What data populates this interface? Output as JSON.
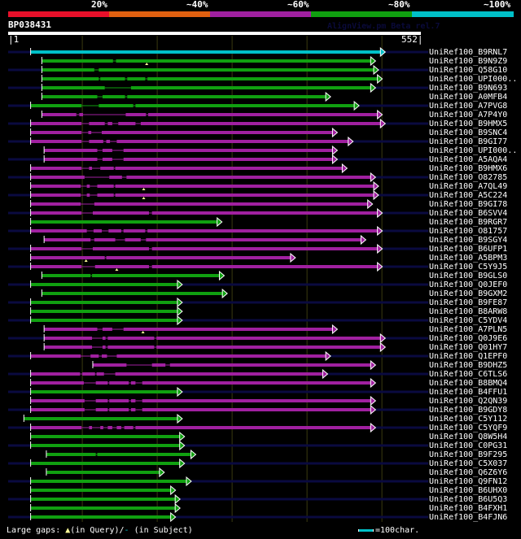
{
  "header": {
    "color_key": [
      {
        "label": "20%",
        "color": "#e8102a"
      },
      {
        "label": "~40%",
        "color": "#e06010"
      },
      {
        "label": "~60%",
        "color": "#a020a0"
      },
      {
        "label": "~80%",
        "color": "#10a010"
      },
      {
        "label": "~100%",
        "color": "#00c0c8"
      }
    ],
    "query_name": "BP038431",
    "watermark": "AlignView.pm Beta rel.7",
    "query_start": "|1",
    "query_end": "552|"
  },
  "footer": {
    "gaps_label": "Large gaps:",
    "gap_query_marker": "▲",
    "gap_query_text": "(in Query)/",
    "gap_subject_marker": "-",
    "gap_subject_text": " (in Subject)",
    "scale_text": "=100char."
  },
  "chart_data": {
    "type": "alignment-overview",
    "title": "BP038431",
    "query_length": 552,
    "xlim": [
      1,
      552
    ],
    "grid_interval": 100,
    "identity_legend": [
      "20%",
      "~40%",
      "~60%",
      "~80%",
      "~100%"
    ],
    "hits": [
      {
        "name": "UniRef100_B9RNL7",
        "start": 31,
        "end": 498,
        "identity": "~100%",
        "subject_overhang_left": true,
        "subject_overhang_right": true
      },
      {
        "name": "UniRef100_B9N9Z9",
        "start": 46,
        "end": 485,
        "identity": "~80%",
        "gaps": [
          [
            141,
            145
          ]
        ],
        "query_gaps": [
          186
        ]
      },
      {
        "name": "UniRef100_Q58G10",
        "start": 46,
        "end": 489,
        "identity": "~80%",
        "gaps": [
          [
            116,
            122
          ]
        ],
        "subject_overhang_left": true,
        "subject_overhang_right": true
      },
      {
        "name": "UniRef100_UPI000..",
        "start": 46,
        "end": 494,
        "identity": "~80%",
        "gaps": [
          [
            122,
            124
          ],
          [
            157,
            160
          ],
          [
            184,
            187
          ]
        ]
      },
      {
        "name": "UniRef100_B9N693",
        "start": 46,
        "end": 485,
        "identity": "~80%",
        "gaps": [
          [
            130,
            165
          ]
        ],
        "subject_overhang_left": true,
        "subject_overhang_right": true
      },
      {
        "name": "UniRef100_A0MFB4",
        "start": 46,
        "end": 425,
        "identity": "~80%",
        "gaps": [
          [
            120,
            127
          ],
          [
            157,
            160
          ]
        ]
      },
      {
        "name": "UniRef100_A7PVG8",
        "start": 31,
        "end": 463,
        "identity": "~80%",
        "gaps": [
          [
            99,
            122
          ],
          [
            168,
            171
          ]
        ],
        "subject_overhang_left": true,
        "subject_overhang_right": true
      },
      {
        "name": "UniRef100_A7P4Y0",
        "start": 46,
        "end": 494,
        "identity": "~60%",
        "gaps": [
          [
            92,
            96
          ],
          [
            101,
            158
          ],
          [
            185,
            188
          ]
        ]
      },
      {
        "name": "UniRef100_B9HMX5",
        "start": 31,
        "end": 498,
        "identity": "~60%",
        "gaps": [
          [
            99,
            109
          ],
          [
            130,
            134
          ],
          [
            140,
            148
          ],
          [
            171,
            178
          ]
        ],
        "subject_overhang_left": true,
        "subject_overhang_right": true
      },
      {
        "name": "UniRef100_B9SNC4",
        "start": 31,
        "end": 434,
        "identity": "~60%",
        "gaps": [
          [
            99,
            108
          ],
          [
            112,
            126
          ]
        ]
      },
      {
        "name": "UniRef100_B9GI77",
        "start": 31,
        "end": 455,
        "identity": "~60%",
        "gaps": [
          [
            99,
            109
          ],
          [
            128,
            132
          ],
          [
            137,
            146
          ]
        ],
        "subject_overhang_left": true,
        "subject_overhang_right": true
      },
      {
        "name": "UniRef100_UPI000..",
        "start": 49,
        "end": 434,
        "identity": "~60%",
        "gaps": [
          [
            120,
            127
          ],
          [
            140,
            155
          ]
        ]
      },
      {
        "name": "UniRef100_A5AQA4",
        "start": 49,
        "end": 434,
        "identity": "~60%",
        "gaps": [
          [
            120,
            127
          ],
          [
            140,
            155
          ]
        ],
        "subject_overhang_left": true,
        "subject_overhang_right": true
      },
      {
        "name": "UniRef100_B9HMX6",
        "start": 31,
        "end": 447,
        "identity": "~60%",
        "gaps": [
          [
            99,
            109
          ],
          [
            113,
            124
          ],
          [
            142,
            144
          ]
        ]
      },
      {
        "name": "UniRef100_O82785",
        "start": 31,
        "end": 485,
        "identity": "~60%",
        "gaps": [
          [
            103,
            136
          ],
          [
            153,
            159
          ]
        ],
        "subject_overhang_left": true,
        "subject_overhang_right": true
      },
      {
        "name": "UniRef100_A7QL49",
        "start": 31,
        "end": 489,
        "identity": "~60%",
        "gaps": [
          [
            98,
            106
          ],
          [
            110,
            120
          ],
          [
            142,
            144
          ]
        ],
        "query_gaps": [
          182
        ]
      },
      {
        "name": "UniRef100_A5C224",
        "start": 31,
        "end": 489,
        "identity": "~60%",
        "gaps": [
          [
            98,
            106
          ],
          [
            110,
            120
          ],
          [
            142,
            144
          ]
        ],
        "query_gaps": [
          182
        ],
        "subject_overhang_left": true,
        "subject_overhang_right": true
      },
      {
        "name": "UniRef100_B9GI78",
        "start": 31,
        "end": 481,
        "identity": "~60%",
        "gaps": [
          [
            98,
            116
          ]
        ]
      },
      {
        "name": "UniRef100_B6SVV4",
        "start": 31,
        "end": 494,
        "identity": "~60%",
        "gaps": [
          [
            99,
            114
          ],
          [
            189,
            193
          ]
        ],
        "subject_overhang_left": true,
        "subject_overhang_right": true
      },
      {
        "name": "UniRef100_B9RGR7",
        "start": 31,
        "end": 280,
        "identity": "~80%"
      },
      {
        "name": "UniRef100_O81757",
        "start": 31,
        "end": 494,
        "identity": "~60%",
        "gaps": [
          [
            106,
            115
          ],
          [
            126,
            135
          ],
          [
            152,
            155
          ],
          [
            184,
            187
          ]
        ],
        "subject_overhang_left": true,
        "subject_overhang_right": true
      },
      {
        "name": "UniRef100_B9SGY4",
        "start": 49,
        "end": 472,
        "identity": "~60%",
        "gaps": [
          [
            111,
            116
          ],
          [
            144,
            157
          ],
          [
            178,
            185
          ]
        ]
      },
      {
        "name": "UniRef100_B6UFP1",
        "start": 31,
        "end": 494,
        "identity": "~60%",
        "gaps": [
          [
            99,
            114
          ],
          [
            189,
            193
          ]
        ],
        "subject_overhang_left": true,
        "subject_overhang_right": true
      },
      {
        "name": "UniRef100_A5BPM3",
        "start": 31,
        "end": 378,
        "identity": "~60%",
        "gaps": [
          [
            130,
            132
          ]
        ],
        "query_gaps": [
          105
        ]
      },
      {
        "name": "UniRef100_C5Y9J5",
        "start": 31,
        "end": 494,
        "identity": "~60%",
        "gaps": [
          [
            99,
            117
          ],
          [
            189,
            193
          ]
        ],
        "query_gaps": [
          146
        ],
        "subject_overhang_left": true,
        "subject_overhang_right": true
      },
      {
        "name": "UniRef100_B9GLS0",
        "start": 46,
        "end": 283,
        "identity": "~80%",
        "gaps": [
          [
            111,
            113
          ]
        ]
      },
      {
        "name": "UniRef100_Q0JEF0",
        "start": 31,
        "end": 227,
        "identity": "~80%",
        "subject_overhang_left": true,
        "subject_overhang_right": true
      },
      {
        "name": "UniRef100_B9GXM2",
        "start": 46,
        "end": 287,
        "identity": "~80%"
      },
      {
        "name": "UniRef100_B9FE87",
        "start": 31,
        "end": 227,
        "identity": "~80%",
        "subject_overhang_left": true,
        "subject_overhang_right": true
      },
      {
        "name": "UniRef100_B8ARW8",
        "start": 31,
        "end": 227,
        "identity": "~80%"
      },
      {
        "name": "UniRef100_C5YDV4",
        "start": 31,
        "end": 227,
        "identity": "~80%",
        "subject_overhang_left": true,
        "subject_overhang_right": true
      },
      {
        "name": "UniRef100_A7PLN5",
        "start": 49,
        "end": 434,
        "identity": "~60%",
        "gaps": [
          [
            120,
            127
          ],
          [
            140,
            155
          ]
        ],
        "query_gaps": [
          181
        ]
      },
      {
        "name": "UniRef100_Q0J9E6",
        "start": 49,
        "end": 498,
        "identity": "~60%",
        "gaps": [
          [
            113,
            127
          ],
          [
            131,
            134
          ],
          [
            196,
            199
          ]
        ],
        "subject_overhang_left": true,
        "subject_overhang_right": true
      },
      {
        "name": "UniRef100_Q01HY7",
        "start": 49,
        "end": 498,
        "identity": "~60%",
        "gaps": [
          [
            113,
            127
          ],
          [
            131,
            134
          ],
          [
            196,
            199
          ]
        ]
      },
      {
        "name": "UniRef100_Q1EPF0",
        "start": 31,
        "end": 425,
        "identity": "~60%",
        "gaps": [
          [
            98,
            111
          ],
          [
            122,
            126
          ],
          [
            133,
            146
          ]
        ],
        "subject_overhang_left": true,
        "subject_overhang_right": true
      },
      {
        "name": "UniRef100_B9DHZ5",
        "start": 114,
        "end": 485,
        "identity": "~60%",
        "gaps": [
          [
            159,
            193
          ],
          [
            211,
            217
          ]
        ]
      },
      {
        "name": "UniRef100_C6TLS6",
        "start": 31,
        "end": 421,
        "identity": "~60%",
        "gaps": [
          [
            97,
            100
          ],
          [
            117,
            119
          ],
          [
            129,
            144
          ]
        ],
        "subject_overhang_left": true,
        "subject_overhang_right": true
      },
      {
        "name": "UniRef100_B8BMQ4",
        "start": 31,
        "end": 485,
        "identity": "~60%",
        "gaps": [
          [
            102,
            118
          ],
          [
            134,
            136
          ],
          [
            162,
            165
          ],
          [
            171,
            180
          ]
        ]
      },
      {
        "name": "UniRef100_B4FFU1",
        "start": 31,
        "end": 227,
        "identity": "~80%",
        "subject_overhang_left": true,
        "subject_overhang_right": true
      },
      {
        "name": "UniRef100_Q2QN39",
        "start": 31,
        "end": 485,
        "identity": "~60%",
        "gaps": [
          [
            103,
            118
          ],
          [
            134,
            136
          ],
          [
            162,
            165
          ],
          [
            171,
            180
          ]
        ]
      },
      {
        "name": "UniRef100_B9GDY8",
        "start": 31,
        "end": 485,
        "identity": "~60%",
        "gaps": [
          [
            103,
            118
          ],
          [
            134,
            136
          ],
          [
            162,
            165
          ],
          [
            171,
            180
          ]
        ],
        "subject_overhang_left": true,
        "subject_overhang_right": true
      },
      {
        "name": "UniRef100_C5Y112",
        "start": 22,
        "end": 227,
        "identity": "~80%"
      },
      {
        "name": "UniRef100_C5YQF9",
        "start": 31,
        "end": 485,
        "identity": "~60%",
        "gaps": [
          [
            99,
            109
          ],
          [
            113,
            124
          ],
          [
            128,
            134
          ],
          [
            140,
            146
          ],
          [
            152,
            156
          ],
          [
            168,
            171
          ]
        ],
        "subject_overhang_left": true,
        "subject_overhang_right": true
      },
      {
        "name": "UniRef100_Q8W5H4",
        "start": 31,
        "end": 230,
        "identity": "~80%"
      },
      {
        "name": "UniRef100_C0PG31",
        "start": 31,
        "end": 230,
        "identity": "~80%",
        "subject_overhang_left": true,
        "subject_overhang_right": true
      },
      {
        "name": "UniRef100_B9F295",
        "start": 52,
        "end": 245,
        "identity": "~80%",
        "gaps": [
          [
            118,
            120
          ]
        ]
      },
      {
        "name": "UniRef100_C5X037",
        "start": 31,
        "end": 230,
        "identity": "~80%",
        "subject_overhang_left": true,
        "subject_overhang_right": true
      },
      {
        "name": "UniRef100_Q6Z6Y6",
        "start": 52,
        "end": 203,
        "identity": "~80%"
      },
      {
        "name": "UniRef100_Q9FN12",
        "start": 31,
        "end": 239,
        "identity": "~80%",
        "subject_overhang_left": true,
        "subject_overhang_right": true
      },
      {
        "name": "UniRef100_B6UHX0",
        "start": 31,
        "end": 218,
        "identity": "~80%"
      },
      {
        "name": "UniRef100_B6U5Q3",
        "start": 31,
        "end": 224,
        "identity": "~80%",
        "subject_overhang_left": true,
        "subject_overhang_right": true
      },
      {
        "name": "UniRef100_B4FXH1",
        "start": 31,
        "end": 224,
        "identity": "~80%"
      },
      {
        "name": "UniRef100_B4FJN6",
        "start": 31,
        "end": 218,
        "identity": "~80%",
        "subject_overhang_left": true,
        "subject_overhang_right": true
      }
    ]
  }
}
